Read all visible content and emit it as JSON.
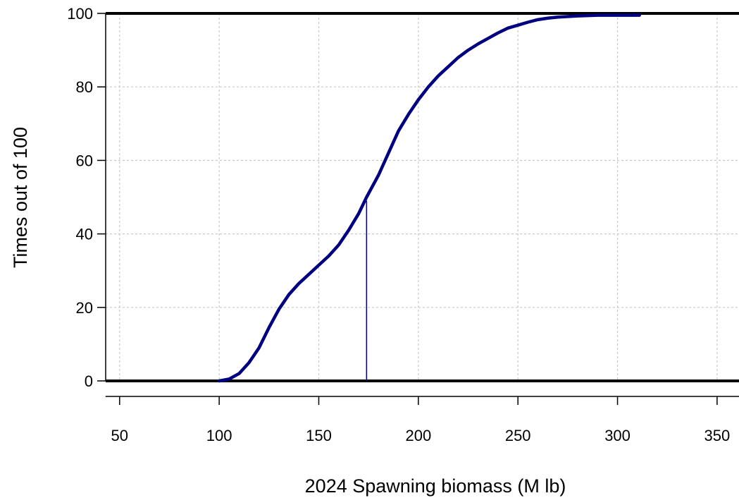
{
  "chart_data": {
    "type": "line",
    "title": "",
    "xlabel": "2024 Spawning biomass (M lb)",
    "ylabel": "Times out of 100",
    "xlim": [
      43,
      361
    ],
    "ylim": [
      0,
      100
    ],
    "x_ticks": [
      50,
      100,
      150,
      200,
      250,
      300,
      350
    ],
    "y_ticks": [
      0,
      20,
      40,
      60,
      80,
      100
    ],
    "grid": true,
    "colors": {
      "series": "#000080",
      "frame": "#000000",
      "grid": "#c8c8c8"
    },
    "series": [
      {
        "x": [
          100,
          105,
          110,
          115,
          120,
          125,
          130,
          135,
          140,
          145,
          150,
          155,
          160,
          165,
          170,
          174,
          180,
          185,
          190,
          195,
          200,
          205,
          210,
          215,
          220,
          225,
          230,
          235,
          240,
          245,
          250,
          255,
          260,
          265,
          270,
          280,
          290,
          300,
          311
        ],
        "y": [
          0,
          0.5,
          2,
          5,
          9,
          14.5,
          19.5,
          23.5,
          26.5,
          29,
          31.5,
          34,
          37,
          41,
          45.5,
          50,
          56,
          62,
          68,
          72.5,
          76.5,
          80,
          83,
          85.5,
          88,
          90,
          91.7,
          93.2,
          94.7,
          96,
          96.8,
          97.6,
          98.3,
          98.7,
          99,
          99.3,
          99.5,
          99.5,
          99.5
        ]
      }
    ],
    "marker_line": {
      "x": 174,
      "y_from": 0,
      "y_to": 49
    }
  }
}
